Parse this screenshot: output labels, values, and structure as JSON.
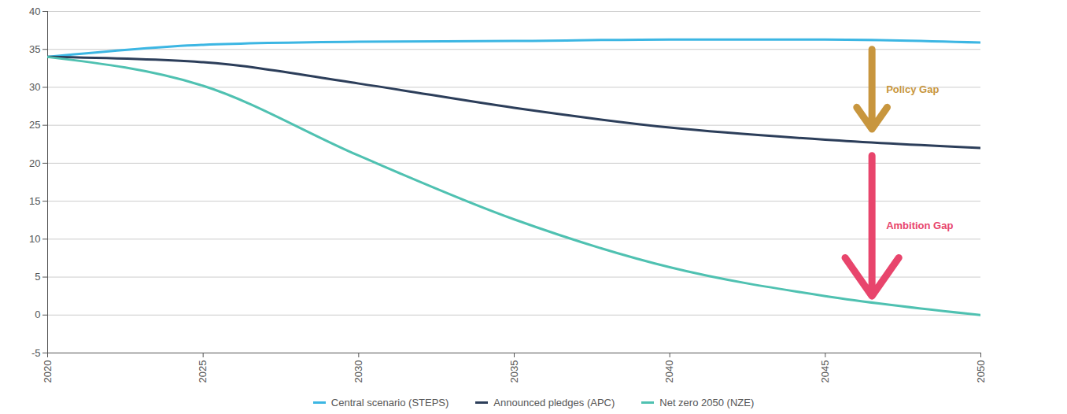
{
  "chart_data": {
    "type": "line",
    "x": [
      2020,
      2025,
      2030,
      2035,
      2040,
      2045,
      2050
    ],
    "series": [
      {
        "name": "Central scenario (STEPS)",
        "color": "#3cb6e3",
        "values": [
          34,
          35.6,
          36,
          36.1,
          36.3,
          36.3,
          35.9
        ]
      },
      {
        "name": "Announced pledges (APC)",
        "color": "#2c3e5a",
        "values": [
          34,
          33.3,
          30.5,
          27.3,
          24.7,
          23.1,
          22
        ]
      },
      {
        "name": "Net zero 2050 (NZE)",
        "color": "#4fc1b1",
        "values": [
          34,
          30.2,
          21,
          12.6,
          6.3,
          2.5,
          0
        ]
      }
    ],
    "xlim": [
      2020,
      2050
    ],
    "xticks": [
      2020,
      2025,
      2030,
      2035,
      2040,
      2045,
      2050
    ],
    "ylim": [
      -5,
      40
    ],
    "yticks": [
      -5,
      0,
      5,
      10,
      15,
      20,
      25,
      30,
      35,
      40
    ],
    "grid": true,
    "legend": "bottom",
    "annotations": [
      {
        "text": "Policy Gap",
        "color": "#c8963e",
        "x": 2046.5,
        "y_start": 35,
        "y_end": 24.5
      },
      {
        "text": "Ambition Gap",
        "color": "#e8456c",
        "x": 2046.5,
        "y_start": 21,
        "y_end": 2.5
      }
    ]
  }
}
